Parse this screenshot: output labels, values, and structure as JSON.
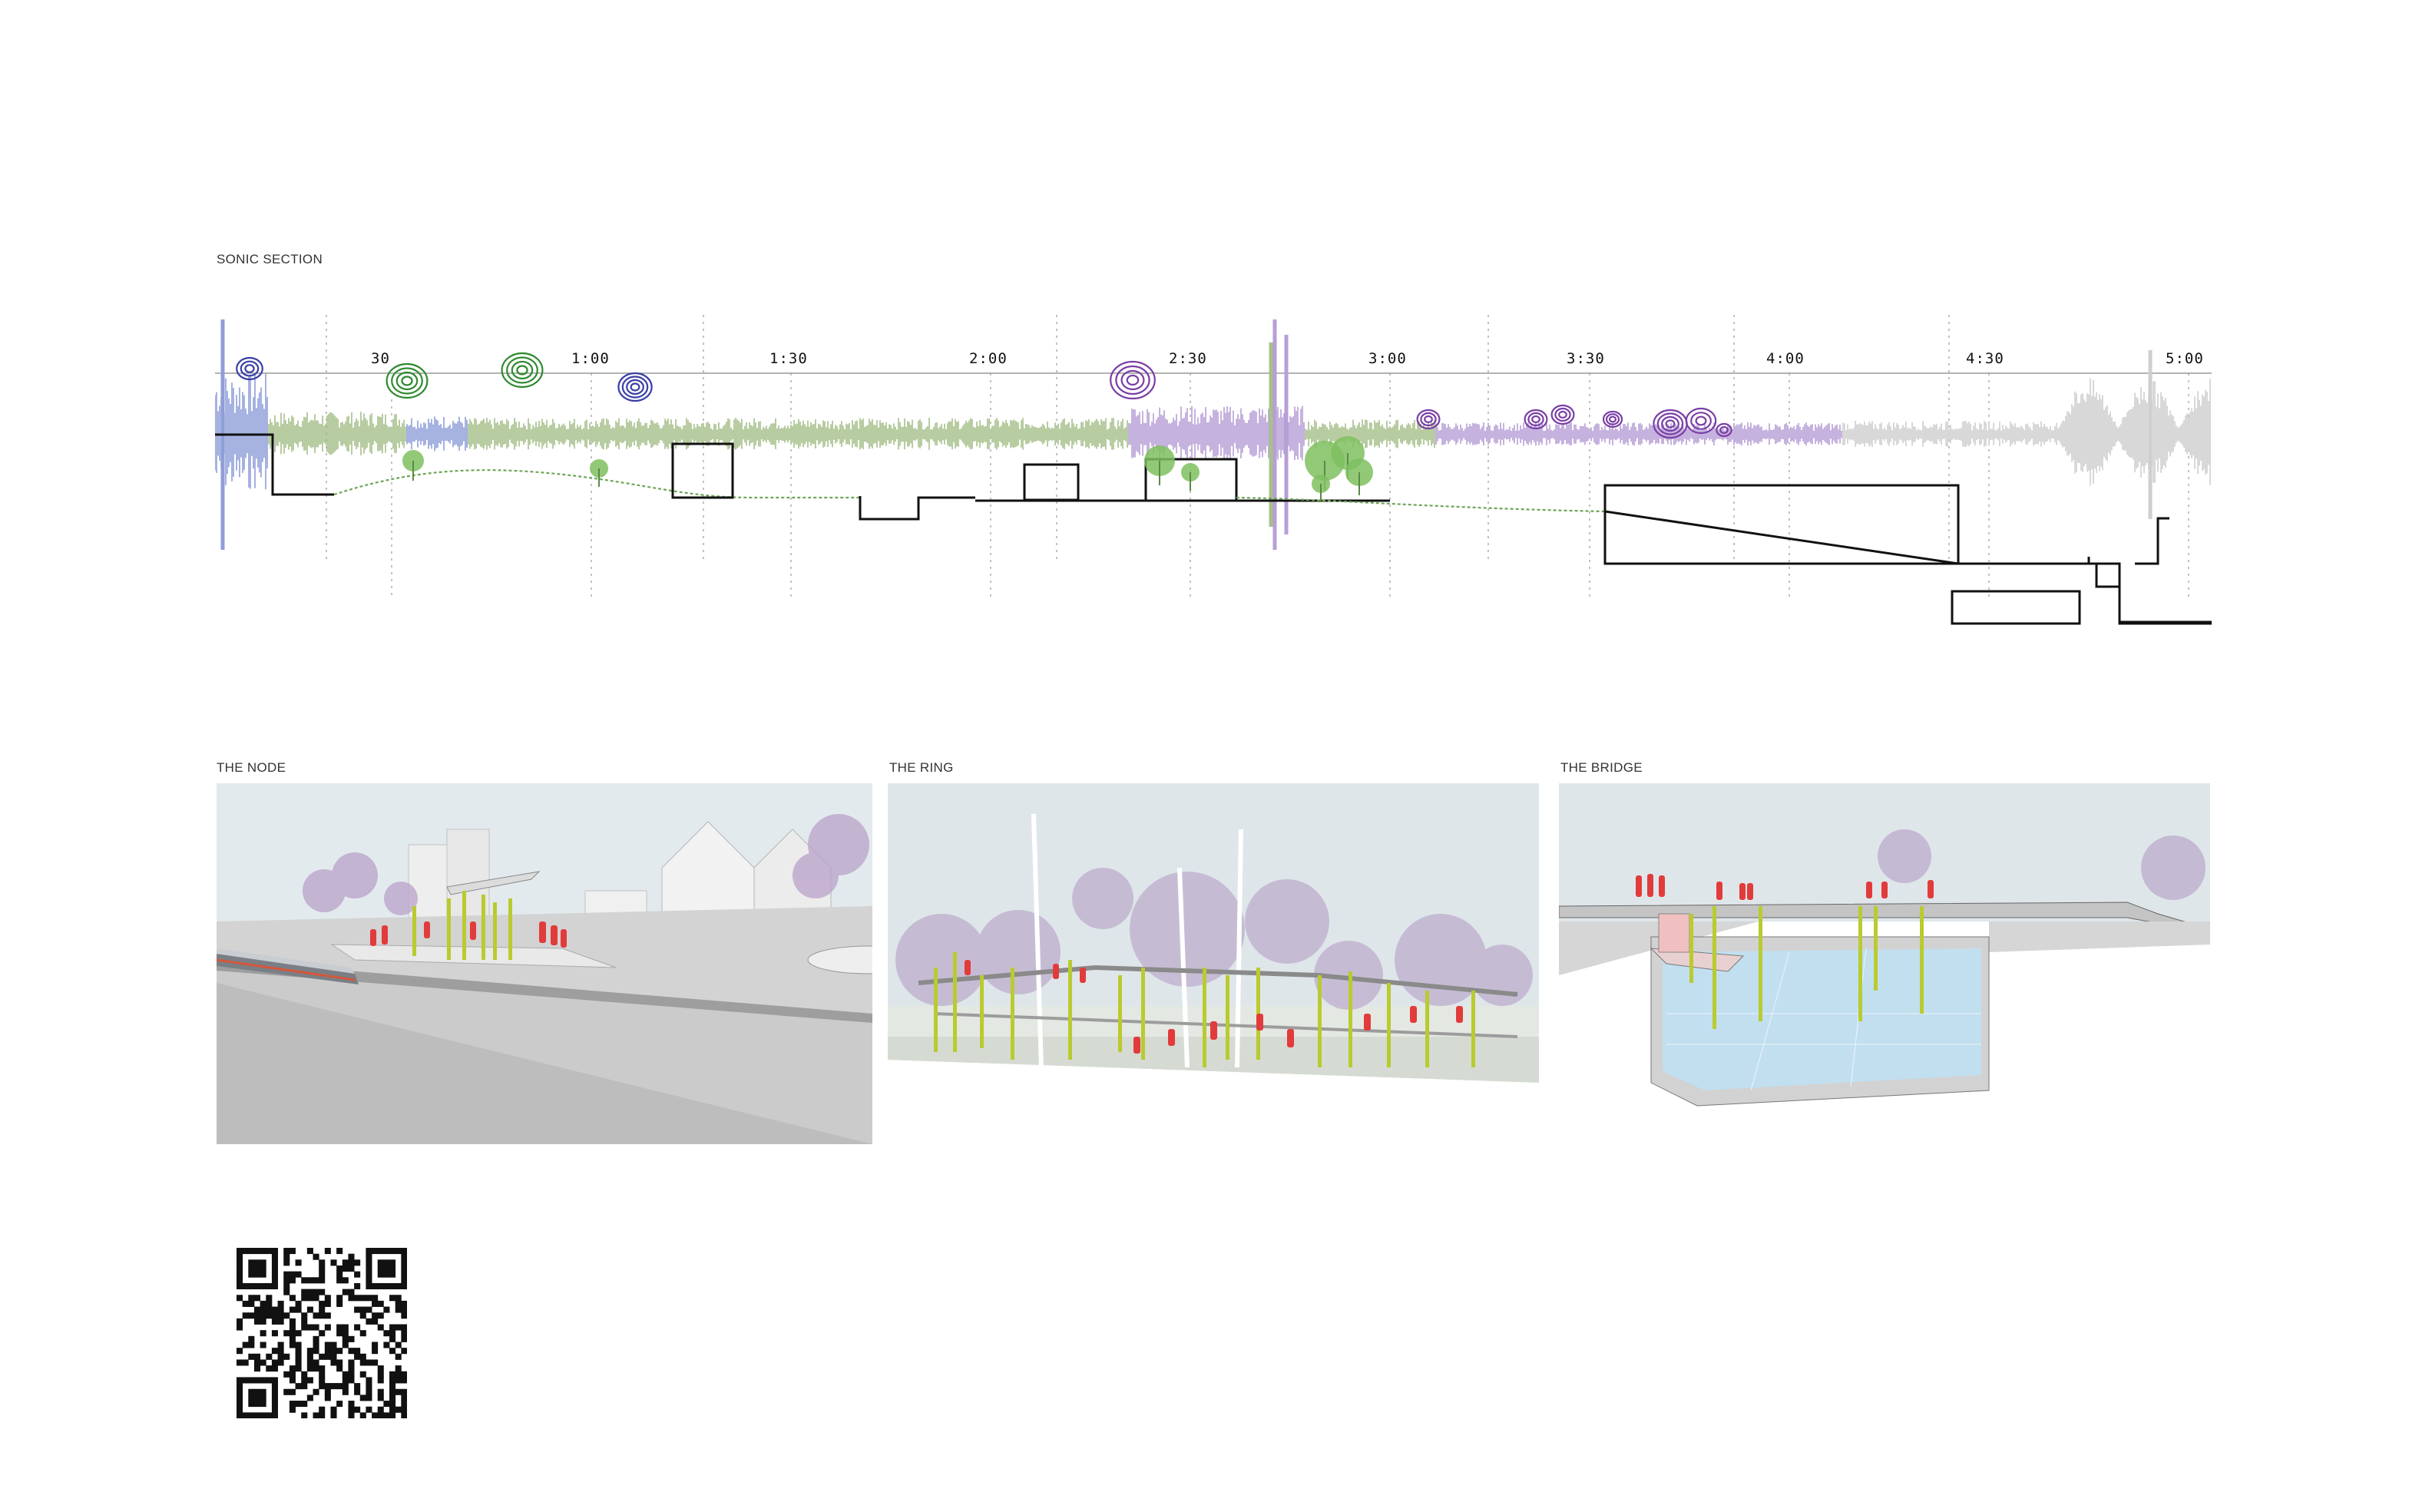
{
  "sonic_section": {
    "title": "SONIC SECTION",
    "time_labels": [
      "30",
      "1:00",
      "1:30",
      "2:00",
      "2:30",
      "3:00",
      "3:30",
      "4:00",
      "4:30",
      "5:00"
    ],
    "segment_colors": {
      "blue": "#8f9ed8",
      "green": "#a7c08a",
      "purple": "#b79fd6",
      "grey": "#cfcfcf"
    },
    "ring_colors": {
      "blue": "#3a3fa6",
      "green": "#2f8a2f",
      "purple": "#7a3fa6"
    }
  },
  "panels": [
    {
      "title": "THE NODE"
    },
    {
      "title": "THE RING"
    },
    {
      "title": "THE BRIDGE"
    }
  ],
  "colors": {
    "people": "#e23b3b",
    "poles": "#b9cb2e",
    "sky": "#dfe6ea",
    "water": "#bfe0f2"
  },
  "qr_code": {
    "icon": "qr-code-icon"
  }
}
